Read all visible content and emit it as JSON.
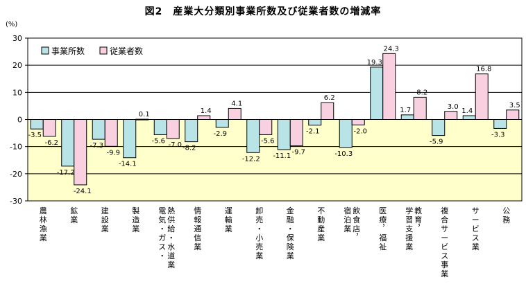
{
  "chart_data": {
    "type": "bar",
    "title": "図2　産業大分類別事業所数及び従業者数の増減率",
    "unit": "(%)",
    "ylim": [
      -30,
      30
    ],
    "yticks": [
      "30",
      "20",
      "10",
      "0",
      "-10",
      "-20",
      "-30"
    ],
    "ytick_values": [
      30,
      20,
      10,
      0,
      -10,
      -20,
      -30
    ],
    "grid": true,
    "legend_position": "top-left",
    "categories": [
      "農林漁業",
      "鉱業",
      "建設業",
      "製造業",
      "電気・ガス・熱供給・水道業",
      "情報通信業",
      "運輸業",
      "卸売・小売業",
      "金融・保険業",
      "不動産業",
      "飲食店，宿泊業",
      "医療，福祉",
      "教育，学習支援業",
      "複合サービス事業",
      "サービス業",
      "公務"
    ],
    "category_columns": [
      [
        "農林漁業"
      ],
      [
        "鉱業"
      ],
      [
        "建設業"
      ],
      [
        "製造業"
      ],
      [
        "熱供給・水道業",
        "電気・ガス・"
      ],
      [
        "情報通信業"
      ],
      [
        "運輸業"
      ],
      [
        "卸売・小売業"
      ],
      [
        "金融・保険業"
      ],
      [
        "不動産業"
      ],
      [
        "飲食店，",
        "宿泊業"
      ],
      [
        "医療，福祉"
      ],
      [
        "教育，",
        "学習支援業"
      ],
      [
        "複合サービス事業"
      ],
      [
        "サービス業"
      ],
      [
        "公務"
      ]
    ],
    "series": [
      {
        "name": "事業所数",
        "color": "#b8e4e8",
        "values": [
          -3.5,
          -17.2,
          -7.3,
          -14.1,
          -5.6,
          -8.2,
          -2.9,
          -12.2,
          -11.1,
          -2.1,
          -10.3,
          19.3,
          1.7,
          -5.9,
          1.4,
          -3.3
        ],
        "labels": [
          "-3.5",
          "-17.2",
          "-7.3",
          "-14.1",
          "-5.6",
          "-8.2",
          "-2.9",
          "-12.2",
          "-11.1",
          "-2.1",
          "-10.3",
          "19.3",
          "1.7",
          "-5.9",
          "1.4",
          "-3.3"
        ]
      },
      {
        "name": "従業者数",
        "color": "#f8d0e0",
        "values": [
          -6.2,
          -24.1,
          -9.9,
          0.1,
          -7.0,
          1.4,
          4.1,
          -5.6,
          -9.7,
          6.2,
          -2.0,
          24.3,
          8.2,
          3.0,
          16.8,
          3.5
        ],
        "labels": [
          "-6.2",
          "-24.1",
          "-9.9",
          "0.1",
          "-7.0",
          "1.4",
          "4.1",
          "-5.6",
          "-9.7",
          "6.2",
          "-2.0",
          "24.3",
          "8.2",
          "3.0",
          "16.8",
          "3.5"
        ]
      }
    ],
    "colors": {
      "positive_band": "#ffffff",
      "negative_band": "#ffffcc",
      "grid": "#000000"
    }
  }
}
